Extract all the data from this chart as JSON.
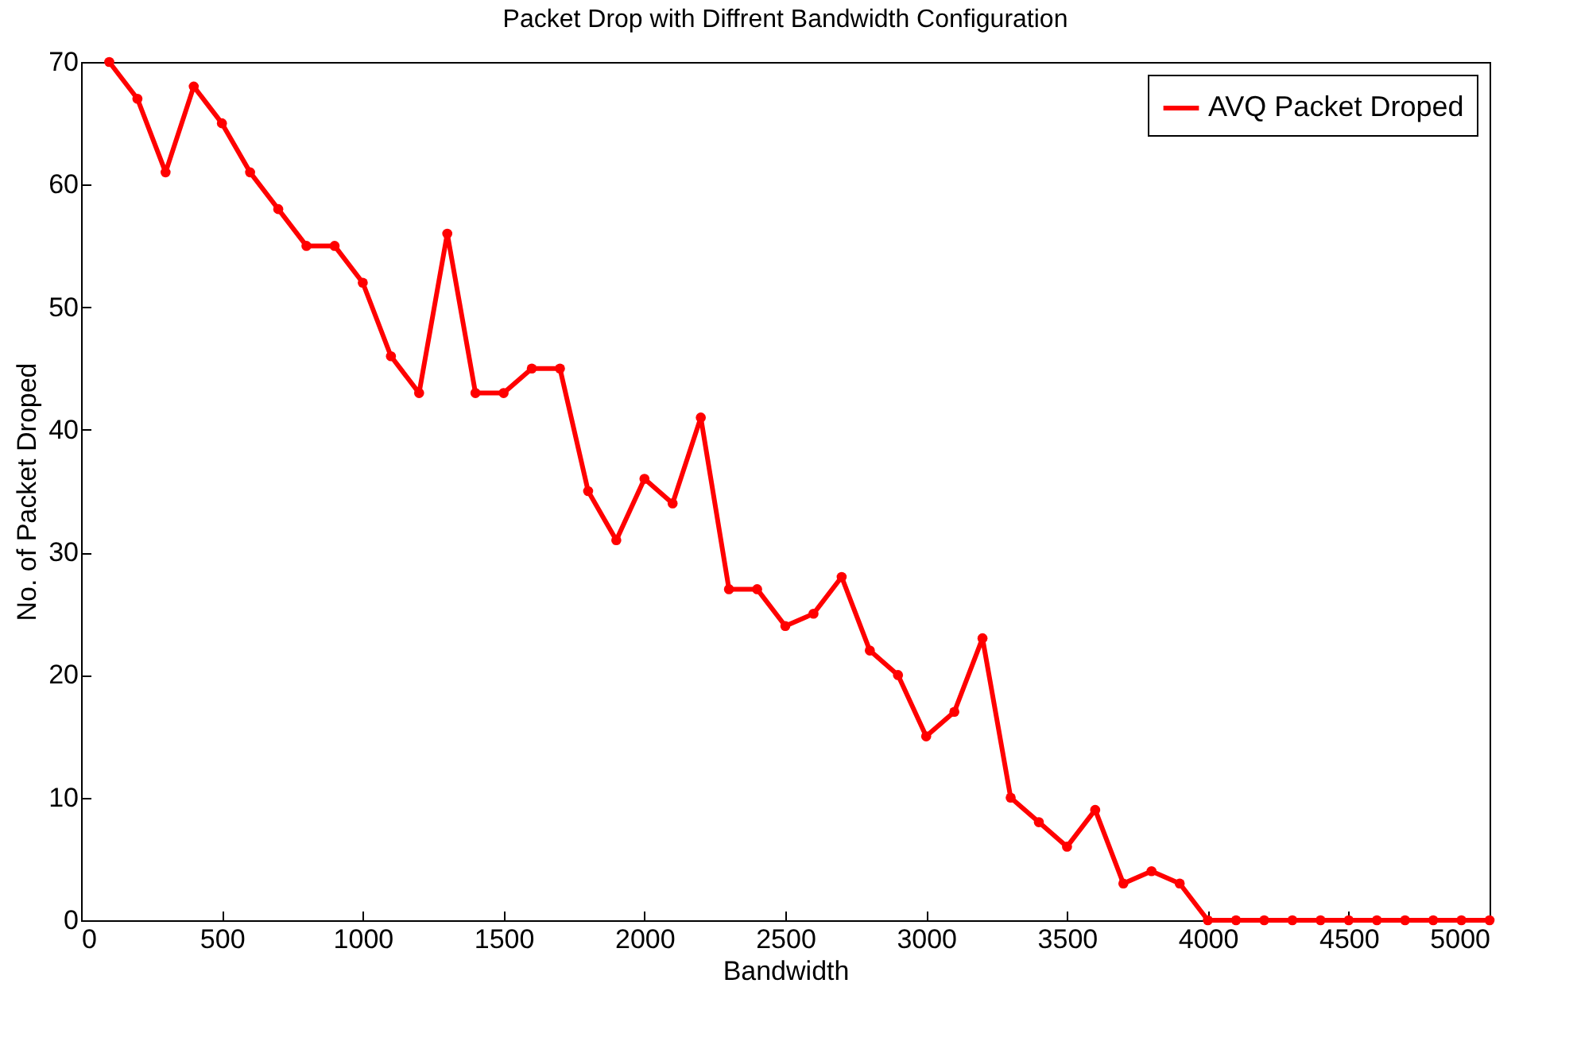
{
  "chart_data": {
    "type": "line",
    "title": "Packet Drop with Diffrent Bandwidth Configuration",
    "xlabel": "Bandwidth",
    "ylabel": "No. of Packet Droped",
    "x": [
      100,
      200,
      300,
      400,
      500,
      600,
      700,
      800,
      900,
      1000,
      1100,
      1200,
      1300,
      1400,
      1500,
      1600,
      1700,
      1800,
      1900,
      2000,
      2100,
      2200,
      2300,
      2400,
      2500,
      2600,
      2700,
      2800,
      2900,
      3000,
      3100,
      3200,
      3300,
      3400,
      3500,
      3600,
      3700,
      3800,
      3900,
      4000,
      4100,
      4200,
      4300,
      4400,
      4500,
      4600,
      4700,
      4800,
      4900,
      5000
    ],
    "series": [
      {
        "name": "AVQ Packet Droped",
        "color": "#ff0000",
        "values": [
          70,
          67,
          61,
          68,
          65,
          61,
          58,
          55,
          55,
          52,
          46,
          43,
          56,
          43,
          43,
          45,
          45,
          35,
          31,
          36,
          34,
          41,
          27,
          27,
          24,
          25,
          28,
          22,
          20,
          15,
          17,
          23,
          10,
          8,
          6,
          9,
          3,
          4,
          3,
          0,
          0,
          0,
          0,
          0,
          0,
          0,
          0,
          0,
          0,
          0
        ]
      }
    ],
    "xlim": [
      0,
      5000
    ],
    "xticks": [
      0,
      500,
      1000,
      1500,
      2000,
      2500,
      3000,
      3500,
      4000,
      4500,
      5000
    ],
    "ylim": [
      0,
      70
    ],
    "yticks": [
      0,
      10,
      20,
      30,
      40,
      50,
      60,
      70
    ],
    "legend": "top right",
    "marker": "circle",
    "line_style": "solid"
  }
}
